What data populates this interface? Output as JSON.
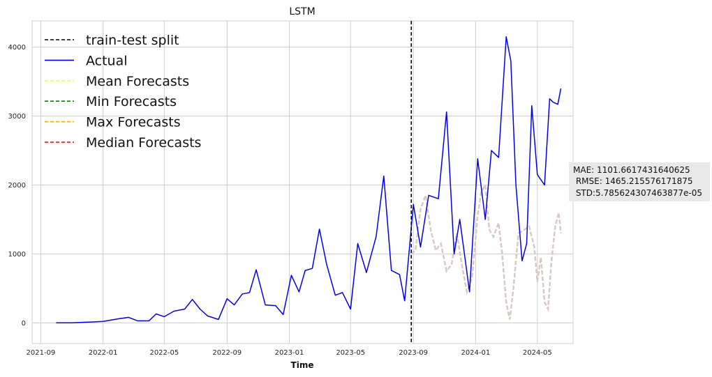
{
  "chart_data": {
    "type": "line",
    "title": "LSTM",
    "xlabel": "Time",
    "ylabel": "",
    "x_ticks": [
      "2021-09",
      "2022-01",
      "2022-05",
      "2022-09",
      "2023-01",
      "2023-05",
      "2023-09",
      "2024-01",
      "2024-05"
    ],
    "y_ticks": [
      0,
      1000,
      2000,
      3000,
      4000
    ],
    "xlim": [
      "2021-08-15",
      "2024-07-10"
    ],
    "ylim": [
      -300,
      4380
    ],
    "grid": true,
    "legend_position": "top-left",
    "train_test_split": "2023-08-28",
    "series": [
      {
        "name": "train-test split",
        "color": "#000000",
        "style": "dashed"
      },
      {
        "name": "Actual",
        "color": "#0000ee",
        "style": "solid",
        "x": [
          "2021-10-01",
          "2021-11-01",
          "2021-12-01",
          "2022-01-01",
          "2022-02-01",
          "2022-02-20",
          "2022-03-10",
          "2022-04-01",
          "2022-04-15",
          "2022-05-01",
          "2022-05-20",
          "2022-06-10",
          "2022-06-25",
          "2022-07-10",
          "2022-07-25",
          "2022-08-15",
          "2022-09-01",
          "2022-09-15",
          "2022-10-01",
          "2022-10-15",
          "2022-10-28",
          "2022-11-15",
          "2022-12-05",
          "2022-12-20",
          "2023-01-05",
          "2023-01-20",
          "2023-02-01",
          "2023-02-15",
          "2023-03-01",
          "2023-03-15",
          "2023-04-01",
          "2023-04-15",
          "2023-05-01",
          "2023-05-15",
          "2023-06-01",
          "2023-06-20",
          "2023-07-05",
          "2023-07-20",
          "2023-08-05",
          "2023-08-15",
          "2023-09-01",
          "2023-09-15",
          "2023-10-01",
          "2023-10-20",
          "2023-11-05",
          "2023-11-20",
          "2023-12-01",
          "2023-12-20",
          "2024-01-05",
          "2024-01-20",
          "2024-02-01",
          "2024-02-15",
          "2024-03-01",
          "2024-03-10",
          "2024-03-20",
          "2024-04-01",
          "2024-04-10",
          "2024-04-20",
          "2024-05-01",
          "2024-05-15",
          "2024-05-25",
          "2024-06-01",
          "2024-06-10",
          "2024-06-16"
        ],
        "y": [
          0,
          0,
          10,
          20,
          60,
          80,
          30,
          30,
          130,
          90,
          170,
          200,
          340,
          200,
          100,
          50,
          350,
          260,
          420,
          440,
          770,
          260,
          250,
          120,
          690,
          450,
          760,
          790,
          1360,
          850,
          400,
          440,
          200,
          1150,
          730,
          1250,
          2130,
          760,
          700,
          320,
          1720,
          1100,
          1850,
          1800,
          3060,
          1000,
          1500,
          450,
          2380,
          1500,
          2500,
          2400,
          4150,
          3800,
          2000,
          900,
          1150,
          3150,
          2150,
          2000,
          3250,
          3200,
          3170,
          3400
        ]
      },
      {
        "name": "Mean Forecasts",
        "color": "#ffff33",
        "style": "dashed",
        "x": [
          "2023-08-28",
          "2023-09-05",
          "2023-09-15",
          "2023-09-25",
          "2023-10-05",
          "2023-10-15",
          "2023-10-25",
          "2023-11-05",
          "2023-11-15",
          "2023-11-25",
          "2023-12-05",
          "2023-12-15",
          "2023-12-25",
          "2024-01-05",
          "2024-01-12",
          "2024-01-20",
          "2024-01-28",
          "2024-02-05",
          "2024-02-15",
          "2024-02-22",
          "2024-03-01",
          "2024-03-08",
          "2024-03-15",
          "2024-03-25",
          "2024-04-05",
          "2024-04-15",
          "2024-04-25",
          "2024-05-01",
          "2024-05-08",
          "2024-05-15",
          "2024-05-22",
          "2024-05-28",
          "2024-06-05",
          "2024-06-12",
          "2024-06-16"
        ],
        "y": [
          1000,
          1050,
          1650,
          1850,
          1350,
          1050,
          1150,
          750,
          850,
          1300,
          850,
          450,
          650,
          1550,
          1900,
          2000,
          1350,
          1250,
          1450,
          1000,
          300,
          50,
          500,
          1300,
          1350,
          1400,
          1100,
          600,
          950,
          300,
          200,
          850,
          1400,
          1600,
          1300
        ]
      },
      {
        "name": "Min Forecasts",
        "color": "#008000",
        "style": "dashed",
        "x": [
          "2023-08-28",
          "2023-09-05",
          "2023-09-15",
          "2023-09-25",
          "2023-10-05",
          "2023-10-15",
          "2023-10-25",
          "2023-11-05",
          "2023-11-15",
          "2023-11-25",
          "2023-12-05",
          "2023-12-15",
          "2023-12-25",
          "2024-01-05",
          "2024-01-12",
          "2024-01-20",
          "2024-01-28",
          "2024-02-05",
          "2024-02-15",
          "2024-02-22",
          "2024-03-01",
          "2024-03-08",
          "2024-03-15",
          "2024-03-25",
          "2024-04-05",
          "2024-04-15",
          "2024-04-25",
          "2024-05-01",
          "2024-05-08",
          "2024-05-15",
          "2024-05-22",
          "2024-05-28",
          "2024-06-05",
          "2024-06-12",
          "2024-06-16"
        ],
        "y": [
          1000,
          1050,
          1650,
          1850,
          1350,
          1050,
          1150,
          750,
          850,
          1300,
          850,
          450,
          650,
          1550,
          1900,
          2000,
          1350,
          1250,
          1450,
          1000,
          300,
          50,
          500,
          1300,
          1350,
          1400,
          1100,
          600,
          950,
          300,
          200,
          850,
          1400,
          1600,
          1300
        ]
      },
      {
        "name": "Max Forecasts",
        "color": "#ffa500",
        "style": "dashed",
        "x": [
          "2023-08-28",
          "2023-09-05",
          "2023-09-15",
          "2023-09-25",
          "2023-10-05",
          "2023-10-15",
          "2023-10-25",
          "2023-11-05",
          "2023-11-15",
          "2023-11-25",
          "2023-12-05",
          "2023-12-15",
          "2023-12-25",
          "2024-01-05",
          "2024-01-12",
          "2024-01-20",
          "2024-01-28",
          "2024-02-05",
          "2024-02-15",
          "2024-02-22",
          "2024-03-01",
          "2024-03-08",
          "2024-03-15",
          "2024-03-25",
          "2024-04-05",
          "2024-04-15",
          "2024-04-25",
          "2024-05-01",
          "2024-05-08",
          "2024-05-15",
          "2024-05-22",
          "2024-05-28",
          "2024-06-05",
          "2024-06-12",
          "2024-06-16"
        ],
        "y": [
          1000,
          1050,
          1650,
          1850,
          1350,
          1050,
          1150,
          750,
          850,
          1300,
          850,
          450,
          650,
          1550,
          1900,
          2000,
          1350,
          1250,
          1450,
          1000,
          300,
          50,
          500,
          1300,
          1350,
          1400,
          1100,
          600,
          950,
          300,
          200,
          850,
          1400,
          1600,
          1300
        ]
      },
      {
        "name": "Median Forecasts",
        "color": "#ff0000",
        "style": "dashed",
        "x": [
          "2023-08-28",
          "2023-09-05",
          "2023-09-15",
          "2023-09-25",
          "2023-10-05",
          "2023-10-15",
          "2023-10-25",
          "2023-11-05",
          "2023-11-15",
          "2023-11-25",
          "2023-12-05",
          "2023-12-15",
          "2023-12-25",
          "2024-01-05",
          "2024-01-12",
          "2024-01-20",
          "2024-01-28",
          "2024-02-05",
          "2024-02-15",
          "2024-02-22",
          "2024-03-01",
          "2024-03-08",
          "2024-03-15",
          "2024-03-25",
          "2024-04-05",
          "2024-04-15",
          "2024-04-25",
          "2024-05-01",
          "2024-05-08",
          "2024-05-15",
          "2024-05-22",
          "2024-05-28",
          "2024-06-05",
          "2024-06-12",
          "2024-06-16"
        ],
        "y": [
          1000,
          1050,
          1650,
          1850,
          1350,
          1050,
          1150,
          750,
          850,
          1300,
          850,
          450,
          650,
          1550,
          1900,
          2000,
          1350,
          1250,
          1450,
          1000,
          300,
          50,
          500,
          1300,
          1350,
          1400,
          1100,
          600,
          950,
          300,
          200,
          850,
          1400,
          1600,
          1300
        ]
      }
    ],
    "forecast_overlay_color": "#d8c8c4",
    "annotations": {
      "mae": "MAE: 1101.6617431640625",
      "rmse": " RMSE: 1465.215576171875",
      "std": " STD:5.785624307463877e-05"
    }
  }
}
